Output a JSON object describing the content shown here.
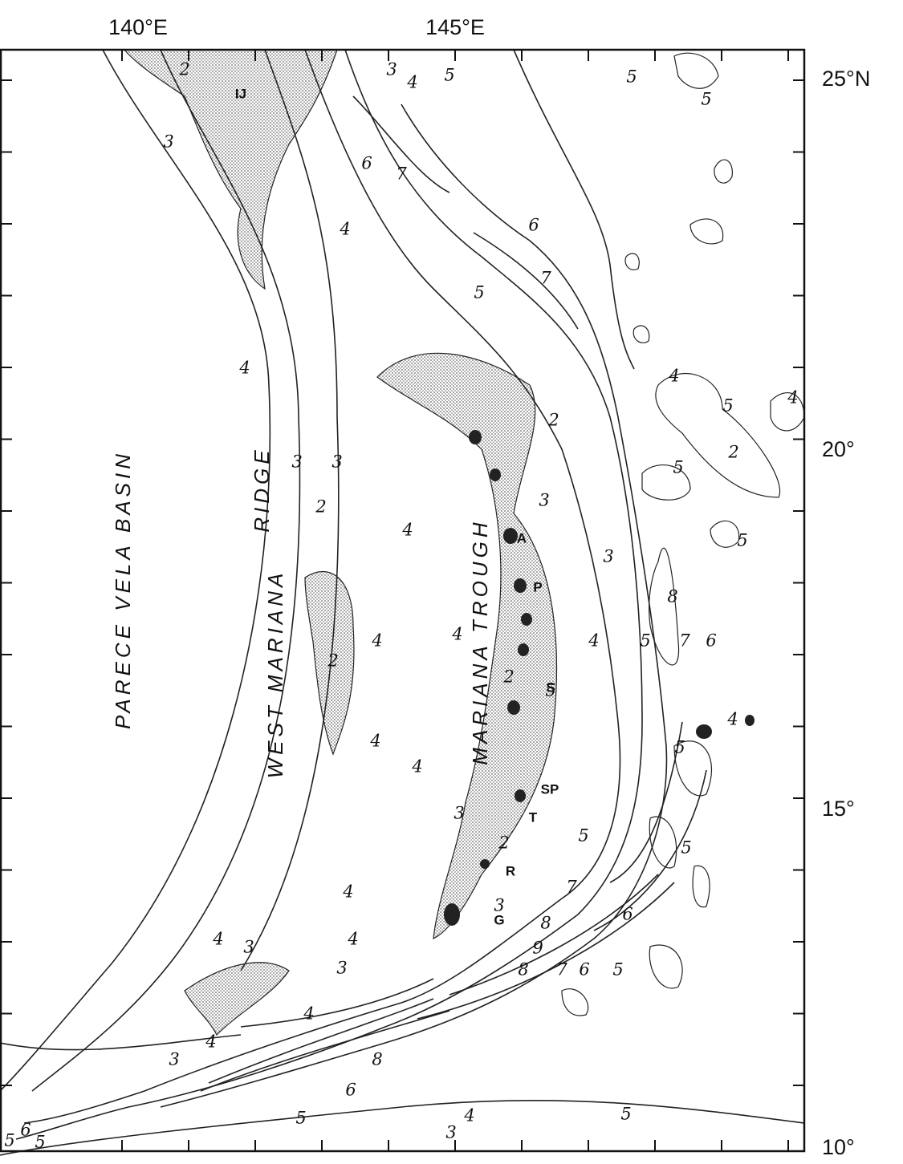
{
  "axes": {
    "top": [
      "140°E",
      "145°E"
    ],
    "right": [
      "25°N",
      "20°",
      "15°",
      "10°"
    ]
  },
  "regions": [
    "PARECE VELA BASIN",
    "WEST MARIANA",
    "RIDGE",
    "MARIANA TROUGH"
  ],
  "sites": [
    "IJ",
    "A",
    "P",
    "S",
    "SP",
    "T",
    "R",
    "G"
  ],
  "contour_labels": [
    "2",
    "3",
    "4",
    "5",
    "5",
    "5",
    "3",
    "6",
    "7",
    "6",
    "4",
    "7",
    "5",
    "4",
    "4",
    "5",
    "4",
    "2",
    "3",
    "3",
    "2",
    "5",
    "2",
    "4",
    "3",
    "5",
    "3",
    "4",
    "8",
    "4",
    "4",
    "5",
    "7",
    "6",
    "2",
    "2",
    "5",
    "4",
    "4",
    "5",
    "4",
    "3",
    "2",
    "5",
    "5",
    "4",
    "3",
    "7",
    "6",
    "8",
    "4",
    "3",
    "4",
    "9",
    "3",
    "8",
    "7",
    "6",
    "5",
    "4",
    "4",
    "3",
    "8",
    "6",
    "5",
    "5",
    "4",
    "3",
    "5",
    "6",
    "5"
  ]
}
